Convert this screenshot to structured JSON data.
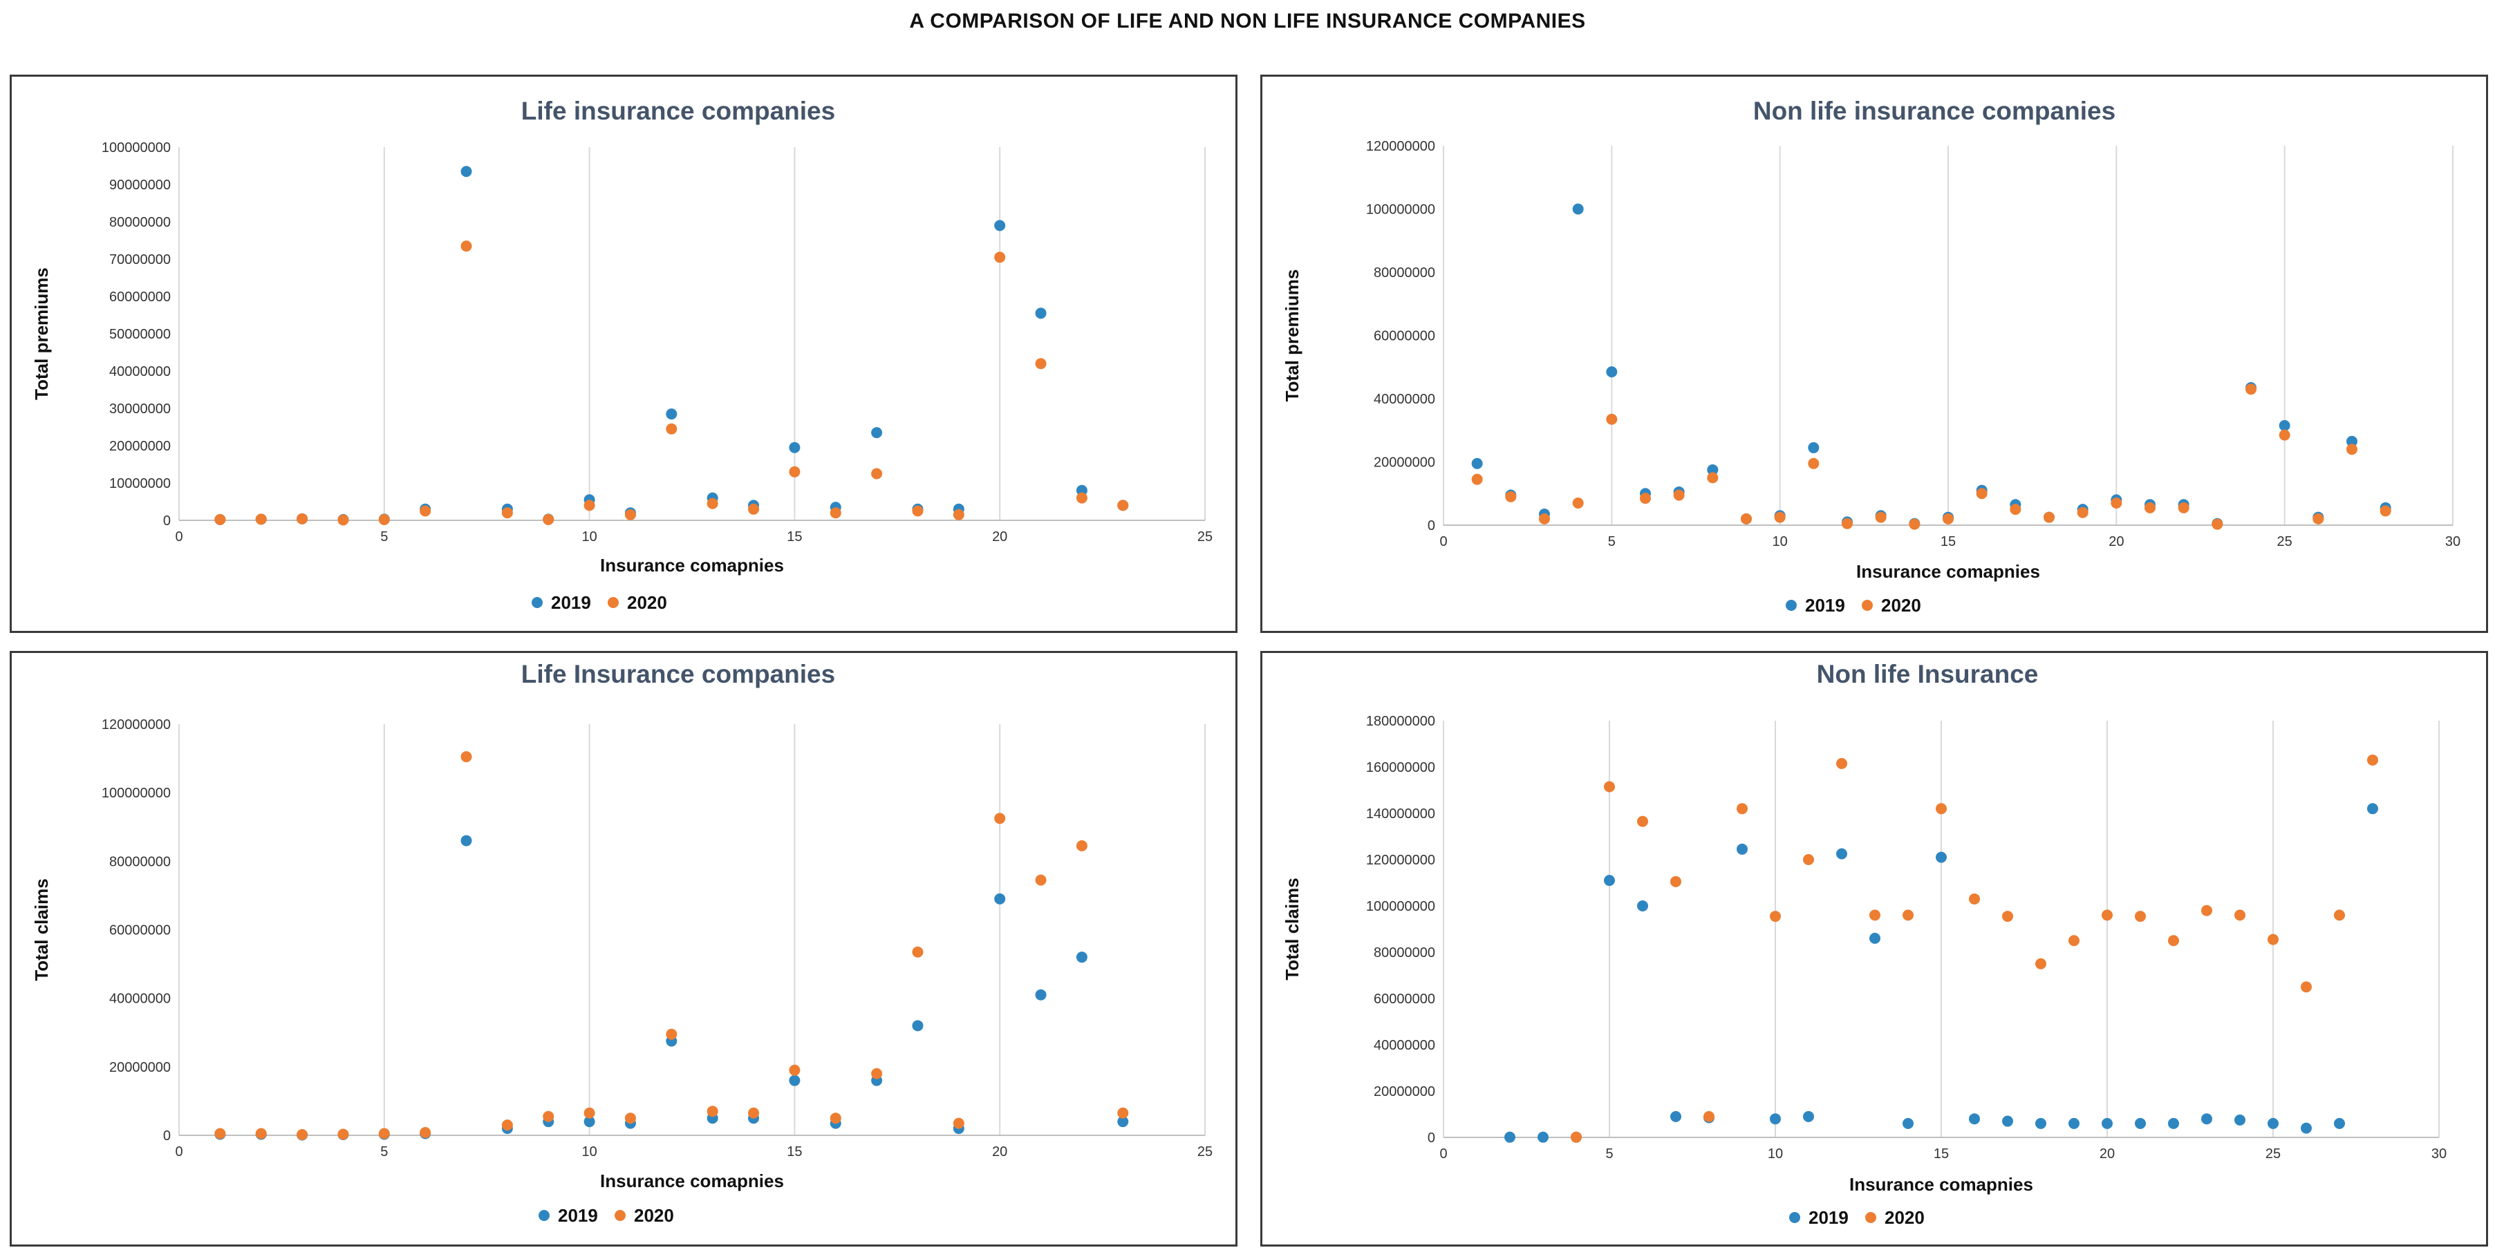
{
  "page": {
    "title": "A COMPARISON OF LIFE AND NON LIFE INSURANCE COMPANIES"
  },
  "colors": {
    "s2019": "#2e86c1",
    "s2020": "#ed7d31",
    "title": "#44546a"
  },
  "chart_data": [
    {
      "type": "scatter",
      "title": "Life insurance  companies",
      "xlabel": "Insurance comapnies",
      "ylabel": "Total premiums",
      "xlim": [
        0,
        25
      ],
      "xticks": [
        0,
        5,
        10,
        15,
        20,
        25
      ],
      "ylim": [
        0,
        100000000
      ],
      "yticks": [
        0,
        10000000,
        20000000,
        30000000,
        40000000,
        50000000,
        60000000,
        70000000,
        80000000,
        90000000,
        100000000
      ],
      "legend": [
        "2019",
        "2020"
      ],
      "grid": "vertical",
      "series": [
        {
          "name": "2019",
          "points": [
            [
              1,
              200000
            ],
            [
              2,
              300000
            ],
            [
              3,
              400000
            ],
            [
              4,
              200000
            ],
            [
              5,
              300000
            ],
            [
              6,
              3000000
            ],
            [
              7,
              93500000
            ],
            [
              8,
              3000000
            ],
            [
              9,
              300000
            ],
            [
              10,
              5500000
            ],
            [
              11,
              2000000
            ],
            [
              12,
              28500000
            ],
            [
              13,
              6000000
            ],
            [
              14,
              4000000
            ],
            [
              15,
              19500000
            ],
            [
              16,
              3500000
            ],
            [
              17,
              23500000
            ],
            [
              18,
              3000000
            ],
            [
              19,
              3000000
            ],
            [
              20,
              79000000
            ],
            [
              21,
              55500000
            ],
            [
              22,
              8000000
            ],
            [
              23,
              4000000
            ]
          ]
        },
        {
          "name": "2020",
          "points": [
            [
              1,
              200000
            ],
            [
              2,
              300000
            ],
            [
              3,
              400000
            ],
            [
              4,
              100000
            ],
            [
              5,
              200000
            ],
            [
              6,
              2500000
            ],
            [
              7,
              73500000
            ],
            [
              8,
              2000000
            ],
            [
              9,
              200000
            ],
            [
              10,
              4000000
            ],
            [
              11,
              1500000
            ],
            [
              12,
              24500000
            ],
            [
              13,
              4500000
            ],
            [
              14,
              3000000
            ],
            [
              15,
              13000000
            ],
            [
              16,
              2000000
            ],
            [
              17,
              12500000
            ],
            [
              18,
              2500000
            ],
            [
              19,
              1500000
            ],
            [
              20,
              70500000
            ],
            [
              21,
              42000000
            ],
            [
              22,
              6000000
            ],
            [
              23,
              4000000
            ]
          ]
        }
      ]
    },
    {
      "type": "scatter",
      "title": "Non life insurance  companies",
      "xlabel": "Insurance comapnies",
      "ylabel": "Total premiums",
      "xlim": [
        0,
        30
      ],
      "xticks": [
        0,
        5,
        10,
        15,
        20,
        25,
        30
      ],
      "ylim": [
        0,
        120000000
      ],
      "yticks": [
        0,
        20000000,
        40000000,
        60000000,
        80000000,
        100000000,
        120000000
      ],
      "legend": [
        "2019",
        "2020"
      ],
      "grid": "vertical",
      "series": [
        {
          "name": "2019",
          "points": [
            [
              1,
              19500000
            ],
            [
              2,
              9500000
            ],
            [
              3,
              3500000
            ],
            [
              4,
              100000000
            ],
            [
              5,
              48500000
            ],
            [
              6,
              10000000
            ],
            [
              7,
              10500000
            ],
            [
              8,
              17500000
            ],
            [
              9,
              2000000
            ],
            [
              10,
              3000000
            ],
            [
              11,
              24500000
            ],
            [
              12,
              1000000
            ],
            [
              13,
              3000000
            ],
            [
              14,
              500000
            ],
            [
              15,
              2500000
            ],
            [
              16,
              11000000
            ],
            [
              17,
              6500000
            ],
            [
              18,
              2500000
            ],
            [
              19,
              5000000
            ],
            [
              20,
              8000000
            ],
            [
              21,
              6500000
            ],
            [
              22,
              6500000
            ],
            [
              23,
              500000
            ],
            [
              24,
              43500000
            ],
            [
              25,
              31500000
            ],
            [
              26,
              2500000
            ],
            [
              27,
              26500000
            ],
            [
              28,
              5500000
            ]
          ]
        },
        {
          "name": "2020",
          "points": [
            [
              1,
              14500000
            ],
            [
              2,
              9000000
            ],
            [
              3,
              2000000
            ],
            [
              4,
              7000000
            ],
            [
              5,
              33500000
            ],
            [
              6,
              8500000
            ],
            [
              7,
              9500000
            ],
            [
              8,
              15000000
            ],
            [
              9,
              2000000
            ],
            [
              10,
              2500000
            ],
            [
              11,
              19500000
            ],
            [
              12,
              500000
            ],
            [
              13,
              2500000
            ],
            [
              14,
              300000
            ],
            [
              15,
              2000000
            ],
            [
              16,
              10000000
            ],
            [
              17,
              5000000
            ],
            [
              18,
              2500000
            ],
            [
              19,
              4000000
            ],
            [
              20,
              7000000
            ],
            [
              21,
              5500000
            ],
            [
              22,
              5500000
            ],
            [
              23,
              300000
            ],
            [
              24,
              43000000
            ],
            [
              25,
              28500000
            ],
            [
              26,
              2000000
            ],
            [
              27,
              24000000
            ],
            [
              28,
              4500000
            ]
          ]
        }
      ]
    },
    {
      "type": "scatter",
      "title": "Life Insurance  companies",
      "xlabel": "Insurance comapnies",
      "ylabel": "Total claims",
      "xlim": [
        0,
        25
      ],
      "xticks": [
        0,
        5,
        10,
        15,
        20,
        25
      ],
      "ylim": [
        0,
        120000000
      ],
      "yticks": [
        0,
        20000000,
        40000000,
        60000000,
        80000000,
        100000000,
        120000000
      ],
      "legend": [
        "2019",
        "2020"
      ],
      "grid": "vertical",
      "series": [
        {
          "name": "2019",
          "points": [
            [
              1,
              300000
            ],
            [
              2,
              300000
            ],
            [
              3,
              100000
            ],
            [
              4,
              200000
            ],
            [
              5,
              300000
            ],
            [
              6,
              500000
            ],
            [
              7,
              86000000
            ],
            [
              8,
              2000000
            ],
            [
              9,
              4000000
            ],
            [
              10,
              4000000
            ],
            [
              11,
              3500000
            ],
            [
              12,
              27500000
            ],
            [
              13,
              5000000
            ],
            [
              14,
              5000000
            ],
            [
              15,
              16000000
            ],
            [
              16,
              3500000
            ],
            [
              17,
              16000000
            ],
            [
              18,
              32000000
            ],
            [
              19,
              2000000
            ],
            [
              20,
              69000000
            ],
            [
              21,
              41000000
            ],
            [
              22,
              52000000
            ],
            [
              23,
              4000000
            ]
          ]
        },
        {
          "name": "2020",
          "points": [
            [
              1,
              500000
            ],
            [
              2,
              500000
            ],
            [
              3,
              200000
            ],
            [
              4,
              300000
            ],
            [
              5,
              500000
            ],
            [
              6,
              800000
            ],
            [
              7,
              110500000
            ],
            [
              8,
              3000000
            ],
            [
              9,
              5500000
            ],
            [
              10,
              6500000
            ],
            [
              11,
              5000000
            ],
            [
              12,
              29500000
            ],
            [
              13,
              7000000
            ],
            [
              14,
              6500000
            ],
            [
              15,
              19000000
            ],
            [
              16,
              5000000
            ],
            [
              17,
              18000000
            ],
            [
              18,
              53500000
            ],
            [
              19,
              3500000
            ],
            [
              20,
              92500000
            ],
            [
              21,
              74500000
            ],
            [
              22,
              84500000
            ],
            [
              23,
              6500000
            ]
          ]
        }
      ]
    },
    {
      "type": "scatter",
      "title": "Non life Insurance",
      "xlabel": "Insurance comapnies",
      "ylabel": "Total claims",
      "xlim": [
        0,
        30
      ],
      "xticks": [
        0,
        5,
        10,
        15,
        20,
        25,
        30
      ],
      "ylim": [
        0,
        180000000
      ],
      "yticks": [
        0,
        20000000,
        40000000,
        60000000,
        80000000,
        100000000,
        120000000,
        140000000,
        160000000,
        180000000
      ],
      "legend": [
        "2019",
        "2020"
      ],
      "grid": "vertical",
      "series": [
        {
          "name": "2019",
          "points": [
            [
              2,
              100000
            ],
            [
              3,
              100000
            ],
            [
              4,
              100000
            ],
            [
              5,
              111000000
            ],
            [
              6,
              100000000
            ],
            [
              7,
              9000000
            ],
            [
              8,
              8500000
            ],
            [
              9,
              124500000
            ],
            [
              10,
              8000000
            ],
            [
              11,
              9000000
            ],
            [
              12,
              122500000
            ],
            [
              13,
              86000000
            ],
            [
              14,
              6000000
            ],
            [
              15,
              121000000
            ],
            [
              16,
              8000000
            ],
            [
              17,
              7000000
            ],
            [
              18,
              6000000
            ],
            [
              19,
              6000000
            ],
            [
              20,
              6000000
            ],
            [
              21,
              6000000
            ],
            [
              22,
              6000000
            ],
            [
              23,
              8000000
            ],
            [
              24,
              7500000
            ],
            [
              25,
              6000000
            ],
            [
              26,
              4000000
            ],
            [
              27,
              6000000
            ],
            [
              28,
              142000000
            ]
          ]
        },
        {
          "name": "2020",
          "points": [
            [
              4,
              100000
            ],
            [
              5,
              151500000
            ],
            [
              6,
              136500000
            ],
            [
              7,
              110500000
            ],
            [
              8,
              9000000
            ],
            [
              9,
              142000000
            ],
            [
              10,
              95500000
            ],
            [
              11,
              120000000
            ],
            [
              12,
              161500000
            ],
            [
              13,
              96000000
            ],
            [
              14,
              96000000
            ],
            [
              15,
              142000000
            ],
            [
              16,
              103000000
            ],
            [
              17,
              95500000
            ],
            [
              18,
              75000000
            ],
            [
              19,
              85000000
            ],
            [
              20,
              96000000
            ],
            [
              21,
              95500000
            ],
            [
              22,
              85000000
            ],
            [
              23,
              98000000
            ],
            [
              24,
              96000000
            ],
            [
              25,
              85500000
            ],
            [
              26,
              65000000
            ],
            [
              27,
              96000000
            ],
            [
              28,
              163000000
            ]
          ]
        }
      ]
    }
  ]
}
